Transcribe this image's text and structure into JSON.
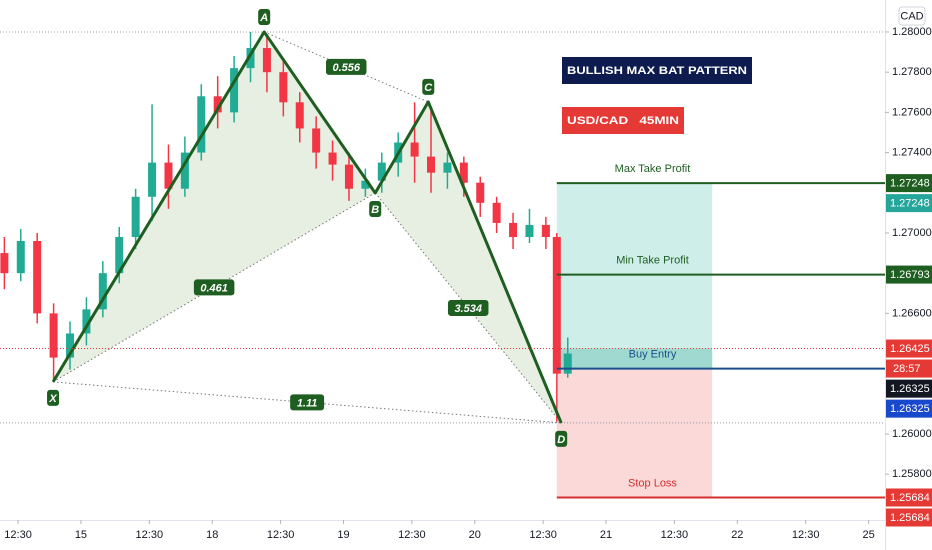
{
  "chart_data": {
    "type": "candlestick",
    "symbol_box": {
      "title": "BULLISH MAX BAT PATTERN",
      "subtitle": "USD/CAD   45MIN",
      "title_color": "#0d1b4f",
      "subtitle_color": "#e53935"
    },
    "currency": "CAD",
    "xlim": [
      9.2,
      171
    ],
    "ylim": [
      1.25572,
      1.28159
    ],
    "xticks": [
      {
        "value": 12.5,
        "label": "12:30"
      },
      {
        "value": 24,
        "label": "15"
      },
      {
        "value": 36.5,
        "label": "12:30"
      },
      {
        "value": 48,
        "label": "18"
      },
      {
        "value": 60.5,
        "label": "12:30"
      },
      {
        "value": 72,
        "label": "19"
      },
      {
        "value": 84.5,
        "label": "12:30"
      },
      {
        "value": 96,
        "label": "20"
      },
      {
        "value": 108.5,
        "label": "12:30"
      },
      {
        "value": 120,
        "label": "21"
      },
      {
        "value": 132.5,
        "label": "12:30"
      },
      {
        "value": 144,
        "label": "22"
      },
      {
        "value": 156.5,
        "label": "12:30"
      },
      {
        "value": 168,
        "label": "25"
      }
    ],
    "yticks": [
      {
        "value": 1.28,
        "label": "1.28000"
      },
      {
        "value": 1.278,
        "label": "1.27800"
      },
      {
        "value": 1.276,
        "label": "1.27600"
      },
      {
        "value": 1.274,
        "label": "1.27400"
      },
      {
        "value": 1.27,
        "label": "1.27000"
      },
      {
        "value": 1.266,
        "label": "1.26600"
      },
      {
        "value": 1.26,
        "label": "1.26000"
      },
      {
        "value": 1.258,
        "label": "1.25800"
      }
    ],
    "up_color": "#22ab94",
    "down_color": "#f23645",
    "candles": {
      "x": [
        10,
        13,
        16,
        19,
        22,
        25,
        28,
        31,
        34,
        37,
        40,
        43,
        46,
        49,
        52,
        55,
        58,
        61,
        64,
        67,
        70,
        73,
        76,
        79,
        82,
        85,
        88,
        91,
        94,
        97,
        100,
        103,
        106,
        109,
        111,
        113
      ],
      "open": [
        1.269,
        1.268,
        1.2696,
        1.266,
        1.2638,
        1.265,
        1.2662,
        1.268,
        1.2698,
        1.2718,
        1.2735,
        1.2722,
        1.274,
        1.2768,
        1.276,
        1.2782,
        1.2792,
        1.278,
        1.2765,
        1.2752,
        1.274,
        1.2734,
        1.2722,
        1.2726,
        1.2735,
        1.2745,
        1.2738,
        1.273,
        1.2735,
        1.2725,
        1.2715,
        1.2705,
        1.2698,
        1.2704,
        1.2698,
        1.263
      ],
      "high": [
        1.2698,
        1.2702,
        1.27,
        1.2665,
        1.2656,
        1.2668,
        1.2686,
        1.2703,
        1.2722,
        1.2764,
        1.2744,
        1.2748,
        1.2774,
        1.2778,
        1.2788,
        1.28,
        1.2798,
        1.2786,
        1.277,
        1.2758,
        1.2746,
        1.274,
        1.2732,
        1.274,
        1.275,
        1.2765,
        1.2762,
        1.274,
        1.2738,
        1.2728,
        1.2718,
        1.271,
        1.2712,
        1.2708,
        1.27,
        1.2648
      ],
      "low": [
        1.2672,
        1.2676,
        1.2655,
        1.2626,
        1.2632,
        1.2644,
        1.2658,
        1.2675,
        1.2692,
        1.2706,
        1.2712,
        1.2718,
        1.2736,
        1.2752,
        1.2755,
        1.2775,
        1.277,
        1.2758,
        1.2745,
        1.2732,
        1.2726,
        1.2716,
        1.2718,
        1.272,
        1.2728,
        1.2725,
        1.272,
        1.2722,
        1.2718,
        1.2708,
        1.27,
        1.2692,
        1.2695,
        1.2692,
        1.2606,
        1.2628
      ],
      "close": [
        1.268,
        1.2696,
        1.266,
        1.2638,
        1.265,
        1.2662,
        1.268,
        1.2698,
        1.2718,
        1.2735,
        1.2722,
        1.274,
        1.2768,
        1.276,
        1.2782,
        1.2792,
        1.278,
        1.2765,
        1.2752,
        1.274,
        1.2734,
        1.2722,
        1.2726,
        1.2735,
        1.2745,
        1.2738,
        1.273,
        1.2735,
        1.2725,
        1.2715,
        1.2705,
        1.2698,
        1.2704,
        1.2698,
        1.263,
        1.264
      ]
    },
    "pattern": {
      "color": "#1e5e20",
      "fill": "#dbe8d6",
      "points": [
        {
          "label": "X",
          "x": 18.9,
          "y": 1.26259
        },
        {
          "label": "A",
          "x": 57.5,
          "y": 1.28
        },
        {
          "label": "B",
          "x": 77.8,
          "y": 1.27199
        },
        {
          "label": "C",
          "x": 87.5,
          "y": 1.27652
        },
        {
          "label": "D",
          "x": 111.8,
          "y": 1.26055
        }
      ],
      "ratios": [
        {
          "label": "0.556",
          "between": [
            "A",
            "C"
          ]
        },
        {
          "label": "0.461",
          "between": [
            "X",
            "B"
          ]
        },
        {
          "label": "3.534",
          "between": [
            "B",
            "D"
          ]
        },
        {
          "label": "1.11",
          "between": [
            "X",
            "D"
          ]
        }
      ]
    },
    "position": {
      "x_start": 111.0,
      "x_end": 139.4,
      "profit_color": "#cdeee9",
      "entry_zone_color": "#9fd9d0",
      "loss_color": "#fbd9d9"
    },
    "levels": [
      {
        "name": "Max Take Profit",
        "value": 1.27248,
        "color": "#1e5e20",
        "tag_colors": [
          "#1e5e20",
          "#26a69a"
        ]
      },
      {
        "name": "Min Take Profit",
        "value": 1.26793,
        "color": "#1e5e20",
        "tag_colors": [
          "#1e5e20"
        ]
      },
      {
        "name": "Buy Entry",
        "value": 1.26325,
        "color": "#1a4f8a",
        "tag_colors": [
          "#131722",
          "#1848cc"
        ]
      },
      {
        "name": "Stop Loss",
        "value": 1.25684,
        "color": "#d32f2f",
        "tag_colors": [
          "#e53935",
          "#e53935"
        ]
      }
    ],
    "current_price": {
      "value": 1.26425,
      "countdown": "28:57",
      "color": "#e53935"
    }
  }
}
